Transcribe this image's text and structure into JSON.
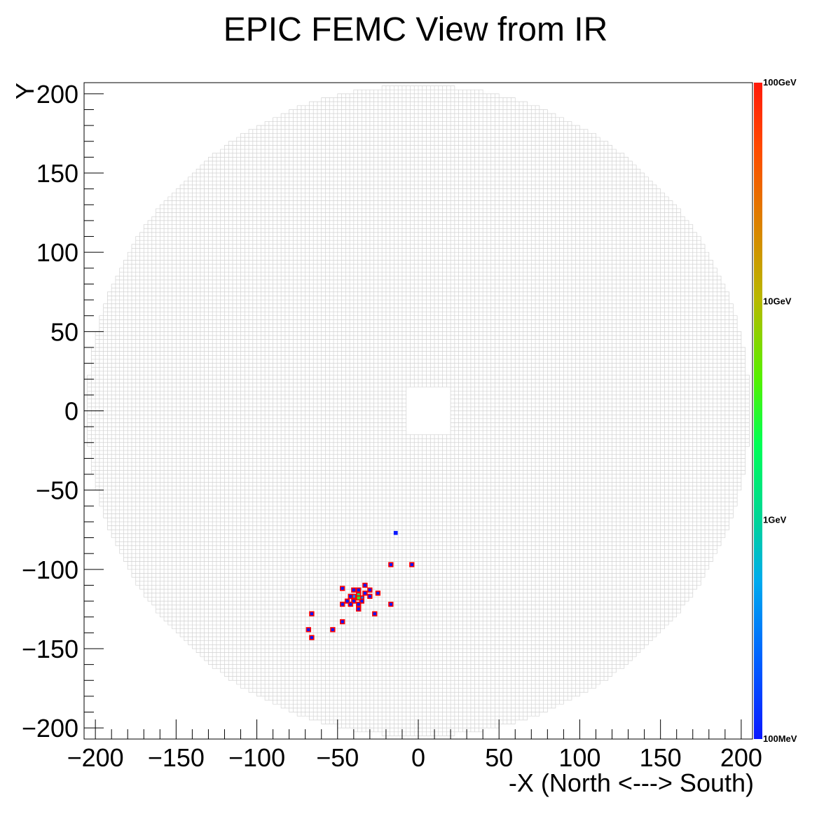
{
  "chart_data": {
    "type": "heatmap",
    "title": "EPIC FEMC View from IR",
    "xlabel": "-X (North <---> South)",
    "ylabel": "Y",
    "xlim": [
      -207,
      207
    ],
    "ylim": [
      -207,
      207
    ],
    "x_ticks": [
      -200,
      -150,
      -100,
      -50,
      0,
      50,
      100,
      150,
      200
    ],
    "y_ticks": [
      -200,
      -150,
      -100,
      -50,
      0,
      50,
      100,
      150,
      200
    ],
    "x_tick_labels": [
      "−200",
      "−150",
      "−100",
      "−50",
      "0",
      "50",
      "100",
      "150",
      "200"
    ],
    "y_tick_labels": [
      "−200",
      "−150",
      "−100",
      "−50",
      "0",
      "50",
      "100",
      "150",
      "200"
    ],
    "cell_size": 2.5,
    "detector_outer_radius": 205,
    "beam_hole": {
      "x": [
        -7,
        21
      ],
      "y": [
        -15,
        15
      ]
    },
    "colorbar": {
      "scale": "log",
      "min": 0.1,
      "max": 100,
      "labels": [
        "100GeV",
        "10GeV",
        "1GeV",
        "100MeV"
      ],
      "label_values": [
        100,
        10,
        1,
        0.1
      ]
    },
    "grid_color": "#d2d2d2",
    "hit_border_color": "#ff0000",
    "hits": [
      {
        "x": -14,
        "y": -77,
        "energy": 0.1
      },
      {
        "x": -4,
        "y": -97,
        "energy": 0.1
      },
      {
        "x": -17,
        "y": -97,
        "energy": 0.1
      },
      {
        "x": -17,
        "y": -122,
        "energy": 0.1
      },
      {
        "x": -25,
        "y": -115,
        "energy": 0.1
      },
      {
        "x": -27,
        "y": -128,
        "energy": 0.1
      },
      {
        "x": -30,
        "y": -113,
        "energy": 0.1
      },
      {
        "x": -30,
        "y": -117,
        "energy": 0.1
      },
      {
        "x": -33,
        "y": -110,
        "energy": 0.1
      },
      {
        "x": -33,
        "y": -115,
        "energy": 0.1
      },
      {
        "x": -35,
        "y": -118,
        "energy": 0.3
      },
      {
        "x": -35,
        "y": -120,
        "energy": 0.1
      },
      {
        "x": -37,
        "y": -113,
        "energy": 0.1
      },
      {
        "x": -37,
        "y": -116,
        "energy": 1.5
      },
      {
        "x": -37,
        "y": -118,
        "energy": 3
      },
      {
        "x": -37,
        "y": -122,
        "energy": 0.1
      },
      {
        "x": -37,
        "y": -125,
        "energy": 0.1
      },
      {
        "x": -40,
        "y": -113,
        "energy": 0.1
      },
      {
        "x": -40,
        "y": -117,
        "energy": 0.4
      },
      {
        "x": -40,
        "y": -120,
        "energy": 0.1
      },
      {
        "x": -42,
        "y": -117,
        "energy": 0.1
      },
      {
        "x": -42,
        "y": -122,
        "energy": 0.1
      },
      {
        "x": -44,
        "y": -120,
        "energy": 0.1
      },
      {
        "x": -47,
        "y": -112,
        "energy": 0.1
      },
      {
        "x": -47,
        "y": -122,
        "energy": 0.1
      },
      {
        "x": -47,
        "y": -133,
        "energy": 0.1
      },
      {
        "x": -53,
        "y": -138,
        "energy": 0.1
      },
      {
        "x": -66,
        "y": -128,
        "energy": 0.1
      },
      {
        "x": -66,
        "y": -143,
        "energy": 0.1
      },
      {
        "x": -68,
        "y": -138,
        "energy": 0.1
      }
    ]
  }
}
